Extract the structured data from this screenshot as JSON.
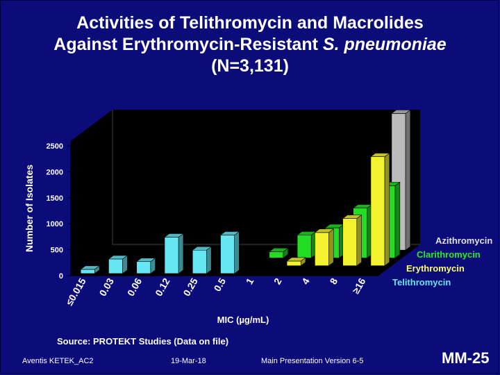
{
  "title": {
    "line1": "Activities of Telithromycin and Macrolides",
    "line2_prefix": "Against Erythromycin-Resistant ",
    "line2_italic": "S. pneumoniae",
    "line3": "(N=3,131)"
  },
  "chart_data": {
    "type": "bar",
    "subtype": "3d-grouped",
    "xlabel": "MIC (µg/mL)",
    "ylabel": "Number of Isolates",
    "ylim": [
      0,
      2500
    ],
    "yticks": [
      0,
      500,
      1000,
      1500,
      2000,
      2500
    ],
    "categories": [
      "≤0.015",
      "0.03",
      "0.06",
      "0.12",
      "0.25",
      "0.5",
      "1",
      "2",
      "4",
      "8",
      "≥16"
    ],
    "series": [
      {
        "name": "Telithromycin",
        "color": "#66e6f2",
        "values": [
          80,
          280,
          230,
          700,
          450,
          740,
          0,
          0,
          0,
          0,
          0
        ]
      },
      {
        "name": "Erythromycin",
        "color": "#f2f230",
        "values": [
          0,
          0,
          0,
          0,
          0,
          0,
          0,
          90,
          640,
          910,
          2100
        ]
      },
      {
        "name": "Clarithromycin",
        "color": "#22dd22",
        "values": [
          0,
          0,
          0,
          0,
          0,
          0,
          120,
          440,
          580,
          960,
          1390
        ]
      },
      {
        "name": "Azithromycin",
        "color": "#bbbbbb",
        "values": [
          0,
          0,
          0,
          0,
          0,
          0,
          0,
          0,
          0,
          0,
          2630
        ]
      }
    ],
    "legend": [
      "Azithromycin",
      "Clarithromycin",
      "Erythromycin",
      "Telithromycin"
    ],
    "legend_position": "right",
    "grid": false
  },
  "legend_colors": {
    "Azithromycin": "#e0e0e0",
    "Clarithromycin": "#22ee22",
    "Erythromycin": "#ffff66",
    "Telithromycin": "#66e6f2"
  },
  "source_text": "Source: PROTEKT Studies (Data on file)",
  "footer": {
    "left": "Aventis KETEK_AC2",
    "center": "19-Mar-18",
    "right": "Main Presentation Version 6-5"
  },
  "slide_number": "MM-25"
}
